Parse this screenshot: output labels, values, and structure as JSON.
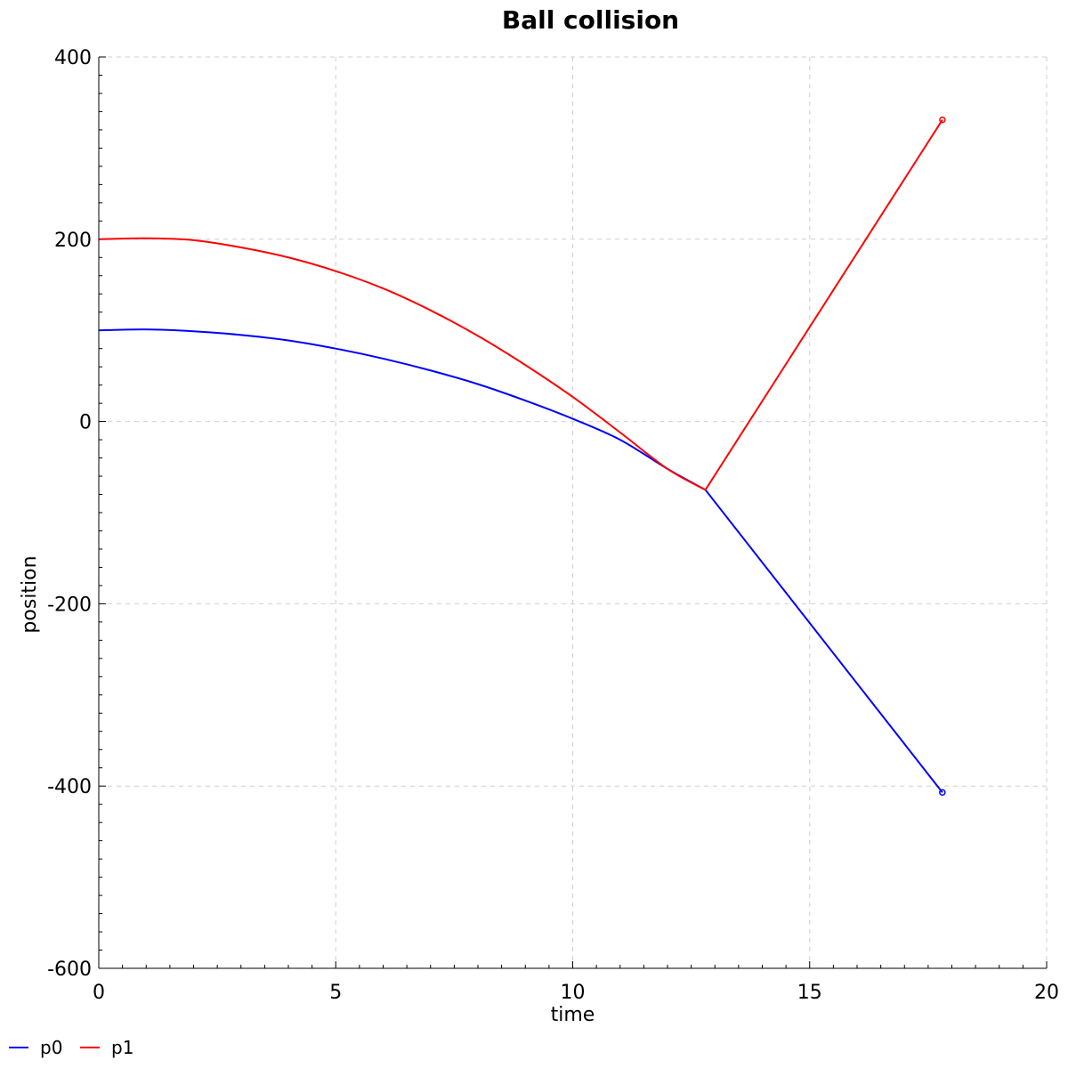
{
  "chart_data": {
    "type": "line",
    "title": "Ball collision",
    "xlabel": "time",
    "ylabel": "position",
    "xlim": [
      0,
      20
    ],
    "ylim": [
      -600,
      400
    ],
    "xticks": [
      0,
      5,
      10,
      15,
      20
    ],
    "xtick_labels": [
      "0",
      "5",
      "10",
      "15",
      "20"
    ],
    "yticks": [
      400,
      200,
      0,
      -200,
      -400,
      -600
    ],
    "ytick_labels": [
      "400",
      "200",
      "0",
      "-200",
      "-400",
      "-600"
    ],
    "grid": true,
    "legend_position": "bottom-left",
    "series": [
      {
        "name": "p0",
        "color": "#0000ff",
        "end_marker": "circle",
        "x": [
          0,
          1,
          2,
          3,
          4,
          5,
          6,
          7,
          8,
          9,
          10,
          11,
          12,
          12.8,
          17.8
        ],
        "y": [
          100,
          101,
          99,
          95,
          89,
          80,
          69,
          56,
          41,
          23,
          3,
          -20,
          -52,
          -75,
          -407
        ]
      },
      {
        "name": "p1",
        "color": "#ff0000",
        "end_marker": "circle",
        "x": [
          0,
          1,
          2,
          3,
          4,
          5,
          6,
          7,
          8,
          9,
          10,
          11,
          12,
          12.8,
          17.8
        ],
        "y": [
          200,
          201,
          199,
          191,
          180,
          165,
          146,
          122,
          94,
          62,
          27,
          -12,
          -52,
          -75,
          331
        ]
      }
    ]
  }
}
